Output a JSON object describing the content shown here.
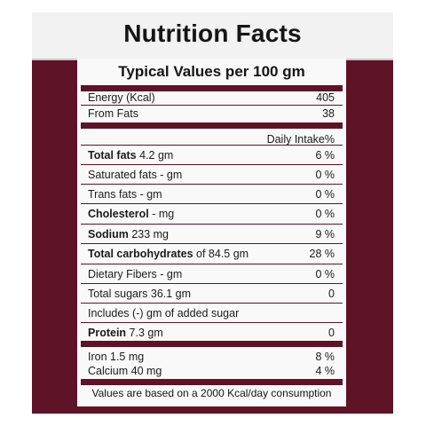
{
  "title": "Nutrition Facts",
  "subtitle": "Typical Values per 100 gm",
  "energy": {
    "label": "Energy (Kcal)",
    "value": "405"
  },
  "from_fats": {
    "label": "From Fats",
    "value": "38"
  },
  "daily_intake_header": "Daily Intake%",
  "nutrients": [
    {
      "name": "Total fats",
      "amount": " 4.2 gm",
      "value": "6 %"
    },
    {
      "name": "Saturated fats - gm",
      "amount": "",
      "value": "0 %"
    },
    {
      "name": "Trans fats - gm",
      "amount": "",
      "value": "0 %"
    },
    {
      "name": "Cholesterol",
      "amount": " - mg",
      "value": "0 %"
    },
    {
      "name": "Sodium",
      "amount": " 233 mg",
      "value": "9 %"
    },
    {
      "name": "Total carbohydrates",
      "amount": " of 84.5 gm",
      "value": "28 %"
    },
    {
      "name": "Dietary Fibers - gm",
      "amount": "",
      "value": "0 %"
    },
    {
      "name": "Total sugars 36.1 gm",
      "amount": "",
      "value": "0"
    },
    {
      "name": "Includes (-) gm of added sugar",
      "amount": "",
      "value": ""
    },
    {
      "name": "Protein",
      "amount": " 7.3 gm",
      "value": "0"
    }
  ],
  "minerals": [
    {
      "label": "Iron 1.5 mg",
      "value": "8 %"
    },
    {
      "label": "Calcium 40 mg",
      "value": "4 %"
    }
  ],
  "footer": "Values are based on a 2000 Kcal/day consumption",
  "colors": {
    "package": "#5e1326",
    "panel": "#f9f9f9",
    "title_band": "#f2f2f2"
  }
}
